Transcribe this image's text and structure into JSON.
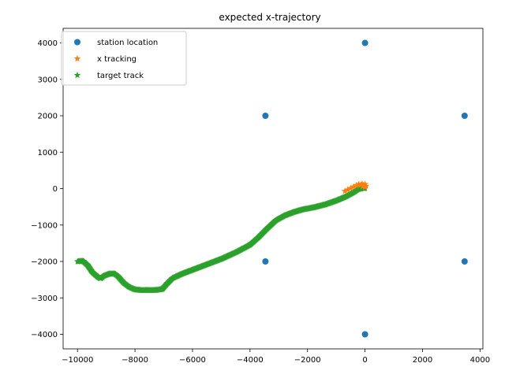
{
  "chart_data": {
    "type": "scatter",
    "title": "expected x-trajectory",
    "xlabel": "",
    "ylabel": "",
    "xlim": [
      -10500,
      4100
    ],
    "ylim": [
      -4400,
      4400
    ],
    "x_ticks": [
      -10000,
      -8000,
      -6000,
      -4000,
      -2000,
      0,
      2000,
      4000
    ],
    "y_ticks": [
      -4000,
      -3000,
      -2000,
      -1000,
      0,
      1000,
      2000,
      3000,
      4000
    ],
    "x_tick_labels": [
      "−10000",
      "−8000",
      "−6000",
      "−4000",
      "−2000",
      "0",
      "2000",
      "4000"
    ],
    "y_tick_labels": [
      "−4000",
      "−3000",
      "−2000",
      "−1000",
      "0",
      "1000",
      "2000",
      "3000",
      "4000"
    ],
    "grid": false,
    "legend_position": "top-left",
    "series": [
      {
        "name": "station location",
        "marker": "circle",
        "color": "#1f77b4",
        "points": [
          [
            0,
            4000
          ],
          [
            3464,
            2000
          ],
          [
            3464,
            -2000
          ],
          [
            0,
            -4000
          ],
          [
            -3464,
            -2000
          ],
          [
            -3464,
            2000
          ]
        ]
      },
      {
        "name": "x tracking",
        "marker": "star",
        "color": "#ff7f0e",
        "points": [
          [
            -700,
            -70
          ],
          [
            -600,
            -30
          ],
          [
            -500,
            10
          ],
          [
            -400,
            50
          ],
          [
            -300,
            90
          ],
          [
            -220,
            120
          ],
          [
            -150,
            100
          ],
          [
            -100,
            130
          ],
          [
            -50,
            90
          ],
          [
            0,
            120
          ],
          [
            30,
            70
          ],
          [
            0,
            40
          ],
          [
            -80,
            60
          ]
        ]
      },
      {
        "name": "target track",
        "marker": "star",
        "color": "#2ca02c",
        "path": [
          [
            -10000,
            -2000
          ],
          [
            -9800,
            -1990
          ],
          [
            -9650,
            -2100
          ],
          [
            -9500,
            -2280
          ],
          [
            -9300,
            -2420
          ],
          [
            -9200,
            -2470
          ],
          [
            -9100,
            -2400
          ],
          [
            -8900,
            -2340
          ],
          [
            -8700,
            -2340
          ],
          [
            -8600,
            -2400
          ],
          [
            -8400,
            -2580
          ],
          [
            -8200,
            -2700
          ],
          [
            -8000,
            -2770
          ],
          [
            -7800,
            -2790
          ],
          [
            -7600,
            -2790
          ],
          [
            -7300,
            -2790
          ],
          [
            -7050,
            -2760
          ],
          [
            -6900,
            -2620
          ],
          [
            -6700,
            -2460
          ],
          [
            -6400,
            -2350
          ],
          [
            -6000,
            -2230
          ],
          [
            -5500,
            -2080
          ],
          [
            -5000,
            -1930
          ],
          [
            -4500,
            -1750
          ],
          [
            -4000,
            -1540
          ],
          [
            -3700,
            -1330
          ],
          [
            -3400,
            -1090
          ],
          [
            -3100,
            -870
          ],
          [
            -2800,
            -740
          ],
          [
            -2500,
            -650
          ],
          [
            -2200,
            -580
          ],
          [
            -1800,
            -520
          ],
          [
            -1400,
            -440
          ],
          [
            -1000,
            -330
          ],
          [
            -700,
            -230
          ],
          [
            -400,
            -100
          ],
          [
            -250,
            -20
          ],
          [
            -100,
            10
          ],
          [
            0,
            10
          ]
        ],
        "samples": 460
      }
    ]
  }
}
